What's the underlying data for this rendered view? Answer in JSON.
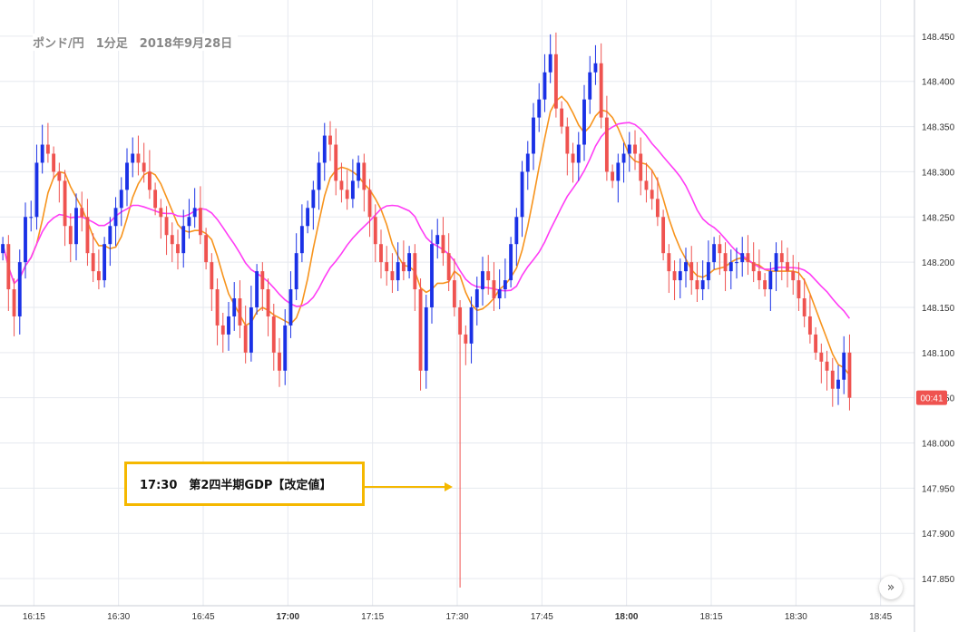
{
  "header": {
    "title": "ポンド/円　1分足　2018年9月28日"
  },
  "annotation": {
    "label": "17:30　第2四半期GDP【改定値】"
  },
  "price_badge": {
    "label": "00:41"
  },
  "scroll_button": {
    "icon": "double-chevron-right-icon",
    "glyph": "»"
  },
  "colors": {
    "up": "#1a31e6",
    "down": "#ef5350",
    "sma_short": "#f7941d",
    "sma_long": "#ff3df5",
    "annotation": "#f5b800",
    "grid": "#e6e9ef"
  },
  "chart_data": {
    "type": "candlestick",
    "y_axis": {
      "range": [
        147.82,
        148.49
      ],
      "ticks": [
        "147.850",
        "147.900",
        "147.950",
        "148.000",
        "148.050",
        "148.100",
        "148.150",
        "148.200",
        "148.250",
        "148.300",
        "148.350",
        "148.400",
        "148.450"
      ],
      "bold_every": 0
    },
    "x_axis": {
      "start": "16:09",
      "end": "18:51",
      "ticks": [
        {
          "time": "16:15",
          "label": "16:15",
          "bold": false
        },
        {
          "time": "16:30",
          "label": "16:30",
          "bold": false
        },
        {
          "time": "16:45",
          "label": "16:45",
          "bold": false
        },
        {
          "time": "17:00",
          "label": "17:00",
          "bold": true
        },
        {
          "time": "17:15",
          "label": "17:15",
          "bold": false
        },
        {
          "time": "17:30",
          "label": "17:30",
          "bold": false
        },
        {
          "time": "17:45",
          "label": "17:45",
          "bold": false
        },
        {
          "time": "18:00",
          "label": "18:00",
          "bold": true
        },
        {
          "time": "18:15",
          "label": "18:15",
          "bold": false
        },
        {
          "time": "18:30",
          "label": "18:30",
          "bold": false
        },
        {
          "time": "18:45",
          "label": "18:45",
          "bold": false
        }
      ]
    },
    "interval": "1分",
    "close_values": [
      148.22,
      148.17,
      148.14,
      148.2,
      148.25,
      148.25,
      148.31,
      148.33,
      148.32,
      148.3,
      148.29,
      148.24,
      148.22,
      148.26,
      148.25,
      148.21,
      148.19,
      148.18,
      148.22,
      148.24,
      148.26,
      148.28,
      148.31,
      148.32,
      148.31,
      148.3,
      148.28,
      148.26,
      148.25,
      148.23,
      148.22,
      148.21,
      148.24,
      148.25,
      148.26,
      148.23,
      148.2,
      148.17,
      148.13,
      148.12,
      148.14,
      148.16,
      148.13,
      148.1,
      148.15,
      148.19,
      148.17,
      148.14,
      148.1,
      148.08,
      148.13,
      148.17,
      148.21,
      148.24,
      148.26,
      148.28,
      148.31,
      148.34,
      148.33,
      148.29,
      148.28,
      148.27,
      148.29,
      148.31,
      148.28,
      148.25,
      148.22,
      148.2,
      148.19,
      148.18,
      148.2,
      148.19,
      148.21,
      148.17,
      148.08,
      148.15,
      148.22,
      148.23,
      148.21,
      148.18,
      148.15,
      148.12,
      148.11,
      148.15,
      148.17,
      148.19,
      148.18,
      148.16,
      148.17,
      148.18,
      148.22,
      148.25,
      148.3,
      148.32,
      148.36,
      148.38,
      148.41,
      148.43,
      148.37,
      148.35,
      148.32,
      148.31,
      148.33,
      148.38,
      148.41,
      148.42,
      148.36,
      148.3,
      148.29,
      148.31,
      148.32,
      148.33,
      148.32,
      148.29,
      148.28,
      148.27,
      148.25,
      148.21,
      148.19,
      148.18,
      148.19,
      148.2,
      148.18,
      148.17,
      148.18,
      148.2,
      148.22,
      148.21,
      148.19,
      148.2,
      148.2,
      148.21,
      148.2,
      148.19,
      148.18,
      148.17,
      148.19,
      148.21,
      148.2,
      148.19,
      148.18,
      148.16,
      148.14,
      148.12,
      148.1,
      148.09,
      148.08,
      148.06,
      148.07,
      148.1,
      148.05
    ],
    "series": [
      {
        "name": "",
        "type": "line"
      },
      {
        "name": "",
        "type": "line"
      }
    ]
  }
}
